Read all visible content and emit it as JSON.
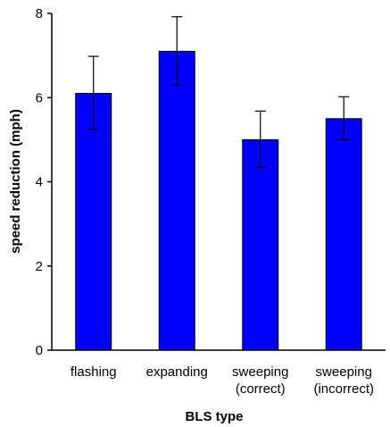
{
  "chart_data": {
    "type": "bar",
    "categories": [
      [
        "flashing"
      ],
      [
        "expanding"
      ],
      [
        "sweeping",
        "(correct)"
      ],
      [
        "sweeping",
        "(incorrect)"
      ]
    ],
    "values": [
      6.1,
      7.1,
      5.0,
      5.5
    ],
    "error_low": [
      5.25,
      6.3,
      4.35,
      5.0
    ],
    "error_high": [
      6.98,
      7.92,
      5.68,
      6.02
    ],
    "xlabel": "BLS type",
    "ylabel": "speed reduction (mph)",
    "ylim": [
      0,
      8
    ],
    "yticks": [
      "0",
      "2",
      "4",
      "6",
      "8"
    ],
    "grid": false,
    "legend": "none",
    "colors": {
      "bar_fill": "#0000ff",
      "bar_stroke": "#000000",
      "axis": "#000000"
    }
  }
}
